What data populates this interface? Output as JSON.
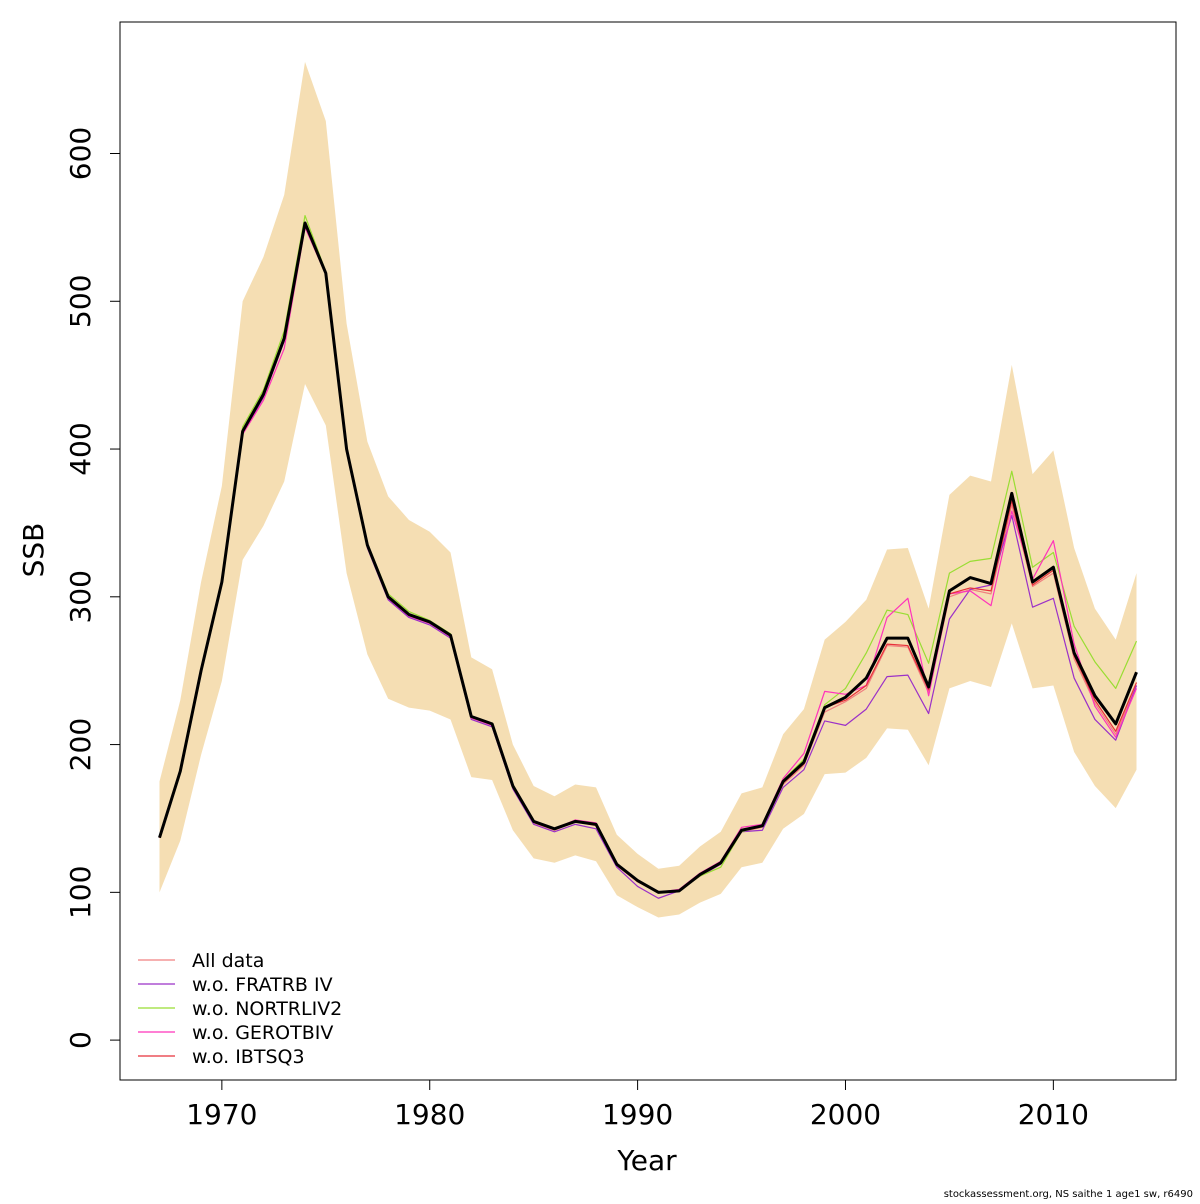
{
  "chart_data": {
    "type": "line",
    "xlabel": "Year",
    "ylabel": "SSB",
    "footnote": "stockassessment.org, NS saithe 1 age1 sw, r6490",
    "x": [
      1967,
      1968,
      1969,
      1970,
      1971,
      1972,
      1973,
      1974,
      1975,
      1976,
      1977,
      1978,
      1979,
      1980,
      1981,
      1982,
      1983,
      1984,
      1985,
      1986,
      1987,
      1988,
      1989,
      1990,
      1991,
      1992,
      1993,
      1994,
      1995,
      1996,
      1997,
      1998,
      1999,
      2000,
      2001,
      2002,
      2003,
      2004,
      2005,
      2006,
      2007,
      2008,
      2009,
      2010,
      2011,
      2012,
      2013,
      2014
    ],
    "values": [
      137,
      182,
      250,
      310,
      412,
      437,
      475,
      553,
      519,
      400,
      335,
      300,
      288,
      283,
      274,
      219,
      214,
      172,
      148,
      143,
      148,
      146,
      119,
      108,
      100,
      101,
      112,
      120,
      142,
      145,
      175,
      188,
      225,
      232,
      245,
      272,
      272,
      239,
      304,
      313,
      309,
      370,
      310,
      320,
      262,
      233,
      214,
      249
    ],
    "color": "#000000",
    "upper": [
      175,
      230,
      310,
      375,
      500,
      530,
      572,
      662,
      622,
      485,
      405,
      368,
      352,
      344,
      330,
      259,
      251,
      200,
      172,
      165,
      173,
      171,
      139,
      126,
      116,
      118,
      131,
      141,
      167,
      171,
      207,
      224,
      271,
      283,
      298,
      332,
      333,
      292,
      369,
      382,
      378,
      457,
      383,
      399,
      333,
      292,
      271,
      316
    ],
    "lower": [
      100,
      135,
      193,
      243,
      325,
      348,
      378,
      444,
      416,
      316,
      261,
      231,
      225,
      223,
      217,
      178,
      176,
      142,
      123,
      120,
      125,
      121,
      98,
      90,
      83,
      85,
      93,
      99,
      117,
      120,
      143,
      153,
      180,
      181,
      191,
      211,
      210,
      186,
      238,
      243,
      239,
      282,
      238,
      240,
      195,
      172,
      157,
      183
    ],
    "band_color": "#f5deb3",
    "series": [
      {
        "name": "All data",
        "color": "#f08080",
        "values": [
          137,
          182,
          250,
          310,
          411,
          436,
          474,
          552,
          519,
          399,
          334,
          299,
          287,
          282,
          273,
          218,
          213,
          171,
          147,
          142,
          148,
          145,
          118,
          107,
          100,
          101,
          111,
          119,
          141,
          144,
          173,
          186,
          222,
          229,
          238,
          267,
          266,
          235,
          300,
          305,
          302,
          362,
          307,
          316,
          258,
          228,
          207,
          240
        ]
      },
      {
        "name": "w.o. FRATRB IV",
        "color": "#9b30c8",
        "values": [
          137,
          181,
          249,
          309,
          410,
          435,
          473,
          551,
          518,
          398,
          333,
          298,
          286,
          281,
          272,
          217,
          212,
          170,
          146,
          141,
          146,
          143,
          117,
          104,
          96,
          101,
          111,
          119,
          141,
          142,
          171,
          183,
          216,
          213,
          224,
          246,
          247,
          221,
          285,
          305,
          308,
          355,
          293,
          299,
          245,
          217,
          203,
          240
        ]
      },
      {
        "name": "w.o. NORTRLIV2",
        "color": "#99dd33",
        "values": [
          137,
          183,
          251,
          311,
          415,
          440,
          480,
          558,
          520,
          400,
          336,
          302,
          290,
          284,
          275,
          219,
          214,
          172,
          148,
          143,
          148,
          146,
          119,
          108,
          100,
          101,
          111,
          117,
          141,
          145,
          176,
          190,
          227,
          238,
          262,
          291,
          288,
          255,
          316,
          324,
          326,
          385,
          320,
          330,
          280,
          256,
          238,
          270
        ]
      },
      {
        "name": "w.o. GEROTBIV",
        "color": "#ff33bb",
        "values": [
          137,
          182,
          250,
          309,
          410,
          433,
          468,
          550,
          518,
          399,
          334,
          299,
          287,
          282,
          273,
          218,
          213,
          172,
          148,
          143,
          149,
          147,
          119,
          108,
          100,
          102,
          113,
          121,
          144,
          146,
          177,
          194,
          236,
          234,
          240,
          286,
          299,
          233,
          302,
          304,
          294,
          358,
          312,
          338,
          268,
          226,
          205,
          238
        ]
      },
      {
        "name": "w.o. IBTSQ3",
        "color": "#e8303a",
        "values": [
          137,
          182,
          250,
          310,
          412,
          437,
          475,
          552,
          519,
          400,
          335,
          300,
          288,
          283,
          274,
          219,
          214,
          172,
          148,
          143,
          148,
          146,
          119,
          108,
          100,
          101,
          112,
          120,
          142,
          145,
          174,
          187,
          225,
          230,
          240,
          268,
          267,
          237,
          302,
          306,
          304,
          365,
          308,
          318,
          260,
          230,
          209,
          242
        ]
      }
    ],
    "xlim": [
      1965.1,
      2015.9
    ],
    "ylim": [
      -27,
      689
    ],
    "xticks": [
      1970,
      1980,
      1990,
      2000,
      2010
    ],
    "yticks": [
      0,
      100,
      200,
      300,
      400,
      500,
      600
    ],
    "legend": "bottom-left"
  }
}
